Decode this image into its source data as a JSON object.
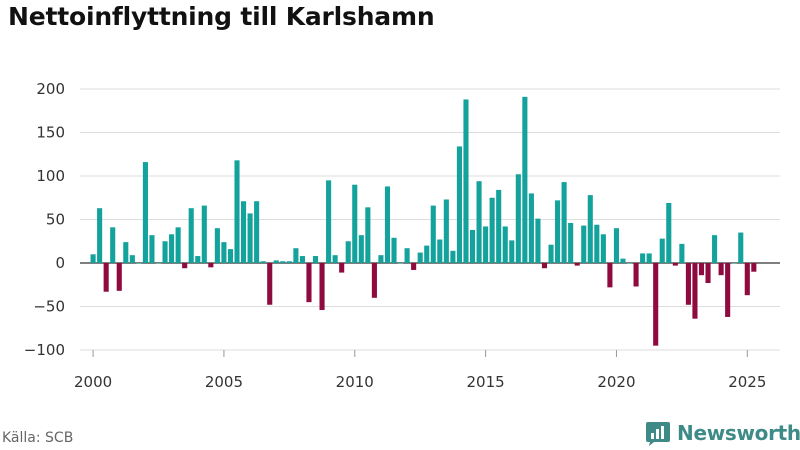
{
  "title": "Nettoinflyttning till Karlshamn",
  "source": "Källa: SCB",
  "brand": {
    "name": "Newsworthy",
    "icon": "bar-chart-logo-icon"
  },
  "colors": {
    "positive": "#14a39c",
    "negative": "#8e0a3f",
    "grid": "#dddddd",
    "brand": "#3d8a86"
  },
  "chart_data": {
    "type": "bar",
    "title": "Nettoinflyttning till Karlshamn",
    "xlabel": "",
    "ylabel": "",
    "ylim": [
      -100,
      200
    ],
    "yticks": [
      200,
      150,
      100,
      50,
      0,
      -50,
      -100
    ],
    "ytick_labels": [
      "200",
      "150",
      "100",
      "50",
      "0",
      "−50",
      "−100"
    ],
    "xlim": [
      1999.5,
      2026.25
    ],
    "xticks": [
      2000,
      2005,
      2010,
      2015,
      2020,
      2025
    ],
    "xtick_labels": [
      "2000",
      "2005",
      "2010",
      "2015",
      "2020",
      "2025"
    ],
    "frequency": "quarterly",
    "start": "2000-Q1",
    "grid": true,
    "values": [
      10,
      63,
      -33,
      41,
      -32,
      24,
      9,
      0,
      116,
      32,
      0,
      25,
      33,
      41,
      -6,
      63,
      8,
      66,
      -5,
      40,
      24,
      16,
      118,
      71,
      57,
      71,
      2,
      -48,
      3,
      2,
      2,
      17,
      8,
      -45,
      8,
      -54,
      95,
      9,
      -11,
      25,
      90,
      32,
      64,
      -40,
      9,
      88,
      29,
      0,
      17,
      -8,
      12,
      20,
      66,
      27,
      73,
      14,
      134,
      188,
      38,
      94,
      42,
      75,
      84,
      42,
      26,
      102,
      191,
      80,
      51,
      -6,
      21,
      72,
      93,
      46,
      -3,
      43,
      78,
      44,
      33,
      -28,
      40,
      5,
      0,
      -27,
      11,
      11,
      -95,
      28,
      69,
      -3,
      22,
      -48,
      -64,
      -14,
      -23,
      32,
      -14,
      -62,
      0,
      35,
      -37,
      -10
    ]
  }
}
